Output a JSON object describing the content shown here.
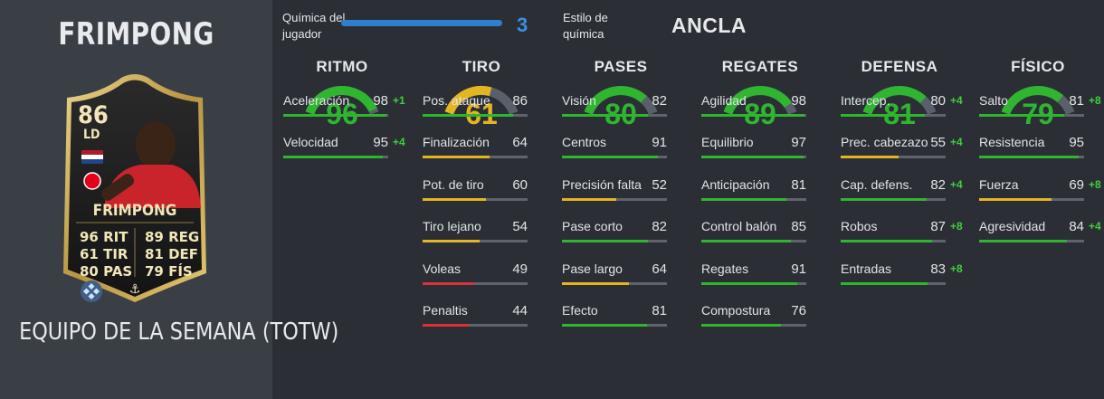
{
  "player": {
    "name": "FRIMPONG",
    "subtitle": "EQUIPO DE LA SEMANA (TOTW)",
    "card": {
      "rating": "86",
      "position": "LD",
      "name": "FRIMPONG",
      "stats_left": [
        [
          "96",
          "RIT"
        ],
        [
          "61",
          "TIR"
        ],
        [
          "80",
          "PAS"
        ]
      ],
      "stats_right": [
        [
          "89",
          "REG"
        ],
        [
          "81",
          "DEF"
        ],
        [
          "79",
          "FÍS"
        ]
      ]
    }
  },
  "header": {
    "chem_label": "Química del jugador",
    "chem_value": "3",
    "style_label": "Estilo de química",
    "style_value": "ANCLA"
  },
  "colors": {
    "green": "#2fb52f",
    "yellow": "#e3b521",
    "red": "#d9323b",
    "blue": "#2f7fd0"
  },
  "categories": [
    {
      "title": "RITMO",
      "value": 96,
      "color": "green",
      "stats": [
        {
          "label": "Aceleración",
          "value": 98,
          "bonus": "+1"
        },
        {
          "label": "Velocidad",
          "value": 95,
          "bonus": "+4"
        }
      ]
    },
    {
      "title": "TIRO",
      "value": 61,
      "color": "yellow",
      "stats": [
        {
          "label": "Pos. ataque",
          "value": 86,
          "bonus": ""
        },
        {
          "label": "Finalización",
          "value": 64,
          "bonus": ""
        },
        {
          "label": "Pot. de tiro",
          "value": 60,
          "bonus": ""
        },
        {
          "label": "Tiro lejano",
          "value": 54,
          "bonus": ""
        },
        {
          "label": "Voleas",
          "value": 49,
          "bonus": ""
        },
        {
          "label": "Penaltis",
          "value": 44,
          "bonus": ""
        }
      ]
    },
    {
      "title": "PASES",
      "value": 80,
      "color": "green",
      "stats": [
        {
          "label": "Visión",
          "value": 82,
          "bonus": ""
        },
        {
          "label": "Centros",
          "value": 91,
          "bonus": ""
        },
        {
          "label": "Precisión falta",
          "value": 52,
          "bonus": ""
        },
        {
          "label": "Pase corto",
          "value": 82,
          "bonus": ""
        },
        {
          "label": "Pase largo",
          "value": 64,
          "bonus": ""
        },
        {
          "label": "Efecto",
          "value": 81,
          "bonus": ""
        }
      ]
    },
    {
      "title": "REGATES",
      "value": 89,
      "color": "green",
      "stats": [
        {
          "label": "Agilidad",
          "value": 98,
          "bonus": ""
        },
        {
          "label": "Equilibrio",
          "value": 97,
          "bonus": ""
        },
        {
          "label": "Anticipación",
          "value": 81,
          "bonus": ""
        },
        {
          "label": "Control balón",
          "value": 85,
          "bonus": ""
        },
        {
          "label": "Regates",
          "value": 91,
          "bonus": ""
        },
        {
          "label": "Compostura",
          "value": 76,
          "bonus": ""
        }
      ]
    },
    {
      "title": "DEFENSA",
      "value": 81,
      "color": "green",
      "stats": [
        {
          "label": "Intercep.",
          "value": 80,
          "bonus": "+4"
        },
        {
          "label": "Prec. cabezazo",
          "value": 55,
          "bonus": "+4"
        },
        {
          "label": "Cap. defens.",
          "value": 82,
          "bonus": "+4"
        },
        {
          "label": "Robos",
          "value": 87,
          "bonus": "+8"
        },
        {
          "label": "Entradas",
          "value": 83,
          "bonus": "+8"
        }
      ]
    },
    {
      "title": "FÍSICO",
      "value": 79,
      "color": "green",
      "stats": [
        {
          "label": "Salto",
          "value": 81,
          "bonus": "+8"
        },
        {
          "label": "Resistencia",
          "value": 95,
          "bonus": ""
        },
        {
          "label": "Fuerza",
          "value": 69,
          "bonus": "+8"
        },
        {
          "label": "Agresividad",
          "value": 84,
          "bonus": "+4"
        }
      ]
    }
  ]
}
